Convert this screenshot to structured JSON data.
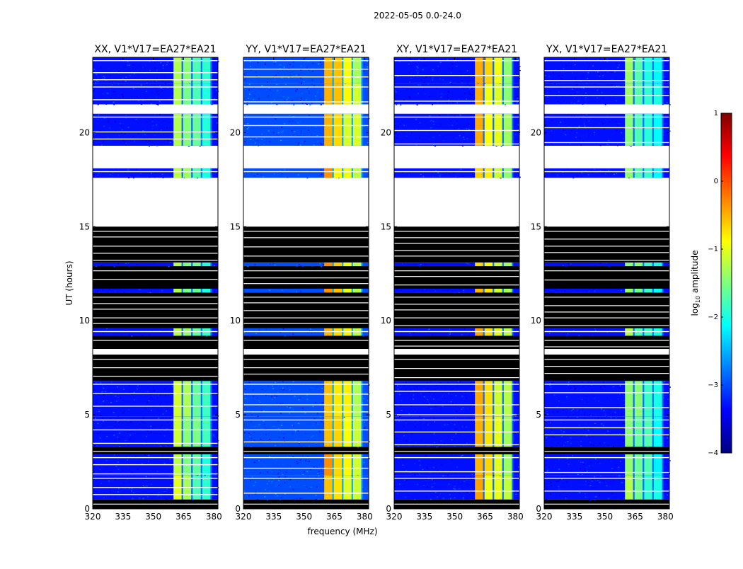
{
  "figure": {
    "suptitle": "2022-05-05 0.0-24.0",
    "xlabel": "frequency (MHz)",
    "ylabel": "UT (hours)"
  },
  "colorbar": {
    "label_main": "log",
    "label_sub": "10",
    "label_tail": " amplitude",
    "range": [
      -4,
      1
    ],
    "ticks": [
      {
        "v": 1,
        "label": "1"
      },
      {
        "v": 0,
        "label": "0"
      },
      {
        "v": -1,
        "label": "−1"
      },
      {
        "v": -2,
        "label": "−2"
      },
      {
        "v": -3,
        "label": "−3"
      },
      {
        "v": -4,
        "label": "−4"
      }
    ],
    "colors": [
      "#00007f",
      "#0000ff",
      "#007fff",
      "#00ffff",
      "#7fff7f",
      "#ffff00",
      "#ff7f00",
      "#ff0000",
      "#7f0000"
    ]
  },
  "chart_data": [
    {
      "type": "heatmap",
      "title": "XX, V1*V17=EA27*EA21",
      "xlim": [
        320,
        382
      ],
      "ylim": [
        0,
        24
      ],
      "xticks": [
        320,
        335,
        350,
        365,
        380
      ],
      "yticks": [
        0,
        5,
        10,
        15,
        20
      ],
      "band_mhz": [
        360,
        379
      ],
      "peak_log_amp": -1.0,
      "background_log_amp": -3.3
    },
    {
      "type": "heatmap",
      "title": "YY, V1*V17=EA27*EA21",
      "xlim": [
        320,
        382
      ],
      "ylim": [
        0,
        24
      ],
      "xticks": [
        320,
        335,
        350,
        365,
        380
      ],
      "yticks": [
        0,
        5,
        10,
        15,
        20
      ],
      "band_mhz": [
        360,
        379
      ],
      "peak_log_amp": -0.3,
      "background_log_amp": -3.0
    },
    {
      "type": "heatmap",
      "title": "XY, V1*V17=EA27*EA21",
      "xlim": [
        320,
        382
      ],
      "ylim": [
        0,
        24
      ],
      "xticks": [
        320,
        335,
        350,
        365,
        380
      ],
      "yticks": [
        0,
        5,
        10,
        15,
        20
      ],
      "band_mhz": [
        360,
        379
      ],
      "peak_log_amp": -0.4,
      "background_log_amp": -3.3
    },
    {
      "type": "heatmap",
      "title": "YX, V1*V17=EA27*EA21",
      "xlim": [
        320,
        382
      ],
      "ylim": [
        0,
        24
      ],
      "xticks": [
        320,
        335,
        350,
        365,
        380
      ],
      "yticks": [
        0,
        5,
        10,
        15,
        20
      ],
      "band_mhz": [
        360,
        379
      ],
      "peak_log_amp": -1.2,
      "background_log_amp": -3.3
    }
  ],
  "time_segments": [
    {
      "from": 0.0,
      "to": 0.5,
      "state": "flagged"
    },
    {
      "from": 0.5,
      "to": 1.8,
      "state": "data"
    },
    {
      "from": 1.8,
      "to": 2.9,
      "state": "data"
    },
    {
      "from": 2.9,
      "to": 3.3,
      "state": "flagged"
    },
    {
      "from": 3.3,
      "to": 4.9,
      "state": "data"
    },
    {
      "from": 4.9,
      "to": 6.8,
      "state": "data"
    },
    {
      "from": 6.8,
      "to": 8.2,
      "state": "flagged"
    },
    {
      "from": 8.2,
      "to": 8.5,
      "state": "gap"
    },
    {
      "from": 8.5,
      "to": 9.2,
      "state": "flagged"
    },
    {
      "from": 9.2,
      "to": 9.6,
      "state": "data"
    },
    {
      "from": 9.6,
      "to": 10.4,
      "state": "flagged"
    },
    {
      "from": 10.4,
      "to": 11.5,
      "state": "flagged"
    },
    {
      "from": 11.5,
      "to": 11.7,
      "state": "data"
    },
    {
      "from": 11.7,
      "to": 12.9,
      "state": "flagged"
    },
    {
      "from": 12.9,
      "to": 13.1,
      "state": "data"
    },
    {
      "from": 13.1,
      "to": 15.0,
      "state": "flagged"
    },
    {
      "from": 15.0,
      "to": 17.6,
      "state": "gap"
    },
    {
      "from": 17.6,
      "to": 18.1,
      "state": "data"
    },
    {
      "from": 18.1,
      "to": 19.3,
      "state": "gap"
    },
    {
      "from": 19.3,
      "to": 21.0,
      "state": "data"
    },
    {
      "from": 21.0,
      "to": 21.5,
      "state": "gap"
    },
    {
      "from": 21.5,
      "to": 22.6,
      "state": "data"
    },
    {
      "from": 22.6,
      "to": 24.0,
      "state": "data"
    }
  ]
}
